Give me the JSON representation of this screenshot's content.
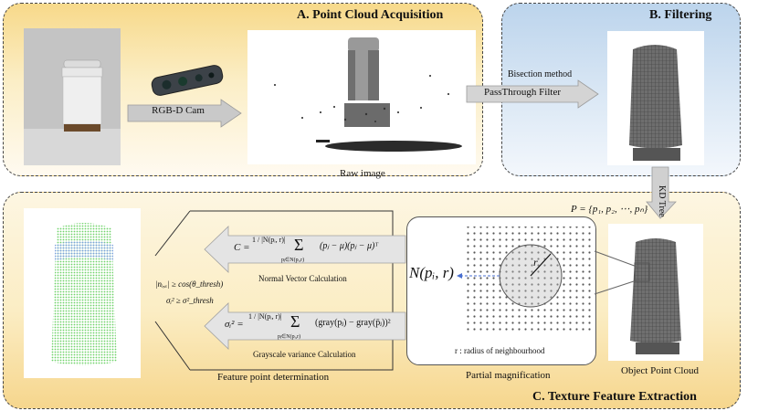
{
  "panels": {
    "a_title": "A. Point Cloud Acquisition",
    "b_title": "B. Filtering",
    "c_title": "C. Texture Feature Extraction"
  },
  "acquisition": {
    "camera_arrow_label": "RGB-D Cam",
    "raw_image_caption": "Raw image"
  },
  "filtering": {
    "method_label": "Bisection method",
    "filter_label": "PassThrough Filter",
    "kd_tree_label": "KD Tree"
  },
  "extraction": {
    "point_set_formula": "P = {p₁, p₂, ⋯, pₙ}",
    "object_caption": "Object Point Cloud",
    "magnification_caption": "Partial magnification",
    "neighbourhood_label": "N(pᵢ, r)",
    "radius_symbol": "r",
    "radius_note": "r : radius of neighbourhood",
    "normal_formula_lhs": "C =",
    "normal_formula_frac": "1 / |N(pᵢ, r)|",
    "normal_formula_sum": "Σ",
    "normal_formula_sub": "pⱼ∈N(pᵢ,r)",
    "normal_formula_body": "(pⱼ − μ)(pⱼ − μ)ᵀ",
    "normal_caption": "Normal Vector Calculation",
    "gray_formula_lhs": "σᵢ² =",
    "gray_formula_frac": "1 / |N(pᵢ, r)|",
    "gray_formula_sum": "Σ",
    "gray_formula_sub": "pⱼ∈N(pᵢ,r)",
    "gray_formula_body": "(gray(pⱼ) − gray(p̄ⱼ))²",
    "gray_caption": "Grayscale variance Calculation",
    "condition_1": "|nᵢ,ₓ| ≥ cos(θ_thresh)",
    "condition_2": "σᵢ² ≥ σ²_thresh",
    "feature_caption": "Feature point determination"
  }
}
